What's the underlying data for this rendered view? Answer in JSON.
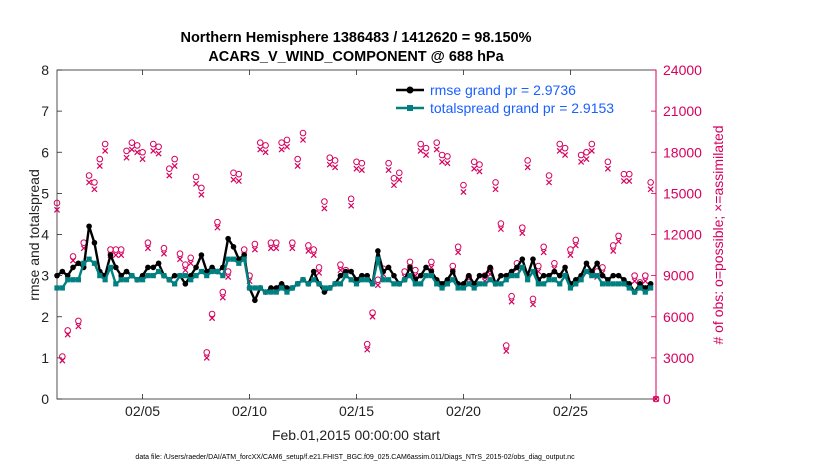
{
  "chart_data": {
    "type": "line",
    "title_line1": "Northern Hemisphere 1386483 / 1412620 = 98.150%",
    "title_line2": "ACARS_V_WIND_COMPONENT @ 688 hPa",
    "xlabel": "Feb.01,2015 00:00:00 start",
    "ylabel_left": "rmse and totalspread",
    "ylabel_right": "# of obs: o=possible; ×=assimilated",
    "footnote": "data file: /Users/raeder/DAI/ATM_forcXX/CAM6_setup/f.e21.FHIST_BGC.f09_025.CAM6assim.011/Diags_NTrS_2015-02/obs_diag_output.nc",
    "xlim": [
      1,
      29
    ],
    "ylim_left": [
      0,
      8
    ],
    "ylim_right": [
      0,
      24000
    ],
    "x_ticks": [
      5,
      10,
      15,
      20,
      25
    ],
    "x_tick_labels": [
      "02/05",
      "02/10",
      "02/15",
      "02/20",
      "02/25"
    ],
    "y_left_ticks": [
      "0",
      "1",
      "2",
      "3",
      "4",
      "5",
      "6",
      "7",
      "8"
    ],
    "y_right_ticks": [
      "0",
      "3000",
      "6000",
      "9000",
      "12000",
      "15000",
      "18000",
      "21000",
      "24000"
    ],
    "legend": [
      {
        "label": "rmse grand pr = 2.9736",
        "color": "#000000",
        "series": "rmse"
      },
      {
        "label": "totalspread grand pr = 2.9153",
        "color": "#008080",
        "series": "totalspread"
      }
    ],
    "colors": {
      "rmse": "#000000",
      "spread": "#008080",
      "obs": "#d6005e",
      "axis_right": "#d6005e",
      "legend_text": "#1a5fff"
    },
    "series": [
      {
        "name": "rmse",
        "x": [
          1.0,
          1.25,
          1.5,
          1.75,
          2.0,
          2.25,
          2.5,
          2.75,
          3.0,
          3.25,
          3.5,
          3.75,
          4.0,
          4.25,
          4.5,
          4.75,
          5.0,
          5.25,
          5.5,
          5.75,
          6.0,
          6.25,
          6.5,
          6.75,
          7.0,
          7.25,
          7.5,
          7.75,
          8.0,
          8.25,
          8.5,
          8.75,
          9.0,
          9.25,
          9.5,
          9.75,
          10.0,
          10.25,
          10.5,
          10.75,
          11.0,
          11.25,
          11.5,
          11.75,
          12.0,
          12.25,
          12.5,
          12.75,
          13.0,
          13.25,
          13.5,
          13.75,
          14.0,
          14.25,
          14.5,
          14.75,
          15.0,
          15.25,
          15.5,
          15.75,
          16.0,
          16.25,
          16.5,
          16.75,
          17.0,
          17.25,
          17.5,
          17.75,
          18.0,
          18.25,
          18.5,
          18.75,
          19.0,
          19.25,
          19.5,
          19.75,
          20.0,
          20.25,
          20.5,
          20.75,
          21.0,
          21.25,
          21.5,
          21.75,
          22.0,
          22.25,
          22.5,
          22.75,
          23.0,
          23.25,
          23.5,
          23.75,
          24.0,
          24.25,
          24.5,
          24.75,
          25.0,
          25.25,
          25.5,
          25.75,
          26.0,
          26.25,
          26.5,
          26.75,
          27.0,
          27.25,
          27.5,
          27.75,
          28.0,
          28.25,
          28.5,
          28.75
        ],
        "values": [
          3.0,
          3.1,
          3.0,
          3.2,
          3.3,
          3.2,
          4.2,
          3.8,
          3.1,
          3.0,
          3.5,
          3.2,
          3.0,
          3.1,
          3.0,
          2.9,
          3.0,
          3.2,
          3.2,
          3.3,
          3.0,
          2.9,
          3.0,
          3.0,
          2.8,
          3.0,
          3.2,
          3.5,
          3.1,
          3.2,
          3.1,
          3.2,
          3.9,
          3.7,
          3.4,
          3.5,
          2.7,
          2.4,
          2.7,
          2.6,
          2.7,
          2.7,
          2.8,
          2.7,
          2.7,
          2.8,
          2.9,
          2.8,
          3.1,
          2.8,
          2.6,
          2.7,
          2.8,
          3.0,
          3.1,
          3.1,
          2.9,
          3.0,
          3.0,
          2.8,
          3.6,
          3.1,
          3.2,
          3.0,
          2.8,
          2.9,
          3.2,
          2.9,
          3.0,
          3.2,
          3.1,
          2.9,
          2.8,
          2.9,
          3.1,
          2.8,
          2.8,
          3.0,
          2.8,
          3.0,
          3.0,
          3.2,
          2.8,
          3.0,
          3.0,
          3.1,
          3.2,
          3.4,
          3.0,
          3.4,
          2.9,
          3.0,
          3.0,
          3.1,
          3.0,
          3.2,
          2.8,
          2.9,
          3.0,
          3.3,
          3.1,
          3.3,
          3.0,
          2.9,
          3.0,
          3.0,
          2.9,
          2.8,
          2.6,
          2.8,
          2.7,
          2.8
        ]
      },
      {
        "name": "totalspread",
        "x": [
          1.0,
          1.25,
          1.5,
          1.75,
          2.0,
          2.25,
          2.5,
          2.75,
          3.0,
          3.25,
          3.5,
          3.75,
          4.0,
          4.25,
          4.5,
          4.75,
          5.0,
          5.25,
          5.5,
          5.75,
          6.0,
          6.25,
          6.5,
          6.75,
          7.0,
          7.25,
          7.5,
          7.75,
          8.0,
          8.25,
          8.5,
          8.75,
          9.0,
          9.25,
          9.5,
          9.75,
          10.0,
          10.25,
          10.5,
          10.75,
          11.0,
          11.25,
          11.5,
          11.75,
          12.0,
          12.25,
          12.5,
          12.75,
          13.0,
          13.25,
          13.5,
          13.75,
          14.0,
          14.25,
          14.5,
          14.75,
          15.0,
          15.25,
          15.5,
          15.75,
          16.0,
          16.25,
          16.5,
          16.75,
          17.0,
          17.25,
          17.5,
          17.75,
          18.0,
          18.25,
          18.5,
          18.75,
          19.0,
          19.25,
          19.5,
          19.75,
          20.0,
          20.25,
          20.5,
          20.75,
          21.0,
          21.25,
          21.5,
          21.75,
          22.0,
          22.25,
          22.5,
          22.75,
          23.0,
          23.25,
          23.5,
          23.75,
          24.0,
          24.25,
          24.5,
          24.75,
          25.0,
          25.25,
          25.5,
          25.75,
          26.0,
          26.25,
          26.5,
          26.75,
          27.0,
          27.25,
          27.5,
          27.75,
          28.0,
          28.25,
          28.5,
          28.75
        ],
        "values": [
          2.7,
          2.7,
          2.9,
          2.9,
          2.9,
          3.3,
          3.4,
          3.3,
          3.0,
          2.9,
          3.2,
          2.8,
          2.9,
          2.9,
          3.0,
          2.9,
          2.9,
          3.0,
          3.0,
          3.1,
          3.0,
          2.9,
          2.8,
          3.0,
          3.0,
          2.9,
          3.0,
          3.1,
          3.0,
          3.1,
          3.1,
          3.0,
          3.4,
          3.4,
          3.3,
          3.4,
          2.7,
          2.7,
          2.7,
          2.6,
          2.6,
          2.6,
          2.7,
          2.6,
          2.7,
          2.8,
          2.9,
          2.8,
          2.9,
          2.8,
          2.7,
          2.7,
          2.8,
          2.8,
          3.0,
          2.9,
          2.8,
          2.9,
          2.9,
          2.8,
          3.4,
          2.9,
          2.9,
          2.8,
          2.8,
          2.9,
          3.0,
          2.8,
          2.8,
          3.0,
          3.0,
          2.8,
          2.7,
          2.8,
          2.9,
          2.7,
          2.7,
          2.8,
          2.7,
          2.8,
          2.8,
          2.9,
          2.8,
          2.8,
          2.9,
          3.0,
          3.0,
          3.2,
          2.9,
          3.1,
          2.8,
          2.8,
          2.9,
          2.9,
          2.8,
          3.0,
          2.7,
          2.8,
          2.9,
          3.1,
          3.0,
          3.0,
          2.8,
          2.8,
          2.8,
          2.8,
          2.8,
          2.7,
          2.6,
          2.7,
          2.6,
          2.7
        ]
      },
      {
        "name": "obs_possible",
        "x": [
          1.0,
          1.25,
          1.5,
          1.75,
          2.0,
          2.25,
          2.5,
          2.75,
          3.0,
          3.25,
          3.5,
          3.75,
          4.0,
          4.25,
          4.5,
          4.75,
          5.0,
          5.25,
          5.5,
          5.75,
          6.0,
          6.25,
          6.5,
          6.75,
          7.0,
          7.25,
          7.5,
          7.75,
          8.0,
          8.25,
          8.5,
          8.75,
          9.0,
          9.25,
          9.5,
          9.75,
          10.0,
          10.25,
          10.5,
          10.75,
          11.0,
          11.25,
          11.5,
          11.75,
          12.0,
          12.25,
          12.5,
          12.75,
          13.0,
          13.25,
          13.5,
          13.75,
          14.0,
          14.25,
          14.5,
          14.75,
          15.0,
          15.25,
          15.5,
          15.75,
          16.0,
          16.25,
          16.5,
          16.75,
          17.0,
          17.25,
          17.5,
          17.75,
          18.0,
          18.25,
          18.5,
          18.75,
          19.0,
          19.25,
          19.5,
          19.75,
          20.0,
          20.25,
          20.5,
          20.75,
          21.0,
          21.25,
          21.5,
          21.75,
          22.0,
          22.25,
          22.5,
          22.75,
          23.0,
          23.25,
          23.5,
          23.75,
          24.0,
          24.25,
          24.5,
          24.75,
          25.0,
          25.25,
          25.5,
          25.75,
          26.0,
          26.25,
          26.5,
          26.75,
          27.0,
          27.25,
          27.5,
          27.75,
          28.0,
          28.25,
          28.5,
          28.75,
          29.0
        ],
        "values": [
          14300,
          3100,
          5000,
          10400,
          5700,
          11400,
          16300,
          15800,
          17500,
          18600,
          10900,
          10900,
          10900,
          18100,
          18700,
          18500,
          18000,
          11400,
          18600,
          18400,
          11000,
          16800,
          17500,
          10600,
          9800,
          10300,
          16200,
          15400,
          3400,
          6200,
          12900,
          7800,
          9300,
          16500,
          16400,
          10900,
          9000,
          11300,
          18700,
          18500,
          11400,
          11400,
          18700,
          18900,
          11400,
          17500,
          19400,
          11200,
          10900,
          9600,
          14400,
          17600,
          17400,
          9800,
          9400,
          14600,
          17300,
          17200,
          4000,
          6300,
          8700,
          9500,
          17200,
          16100,
          16500,
          9300,
          10000,
          9400,
          18600,
          18300,
          10000,
          18700,
          17800,
          17700,
          9700,
          11100,
          15600,
          8900,
          17300,
          17100,
          9000,
          9500,
          15800,
          12800,
          3900,
          7500,
          9900,
          12500,
          17400,
          7300,
          9700,
          11100,
          16300,
          9900,
          18600,
          18300,
          10900,
          11600,
          17800,
          18000,
          18600,
          9300,
          9600,
          17300,
          11200,
          11900,
          16400,
          16400,
          9000,
          8500,
          9000,
          15800,
          0
        ]
      },
      {
        "name": "obs_assimilated",
        "x": [
          1.0,
          1.25,
          1.5,
          1.75,
          2.0,
          2.25,
          2.5,
          2.75,
          3.0,
          3.25,
          3.5,
          3.75,
          4.0,
          4.25,
          4.5,
          4.75,
          5.0,
          5.25,
          5.5,
          5.75,
          6.0,
          6.25,
          6.5,
          6.75,
          7.0,
          7.25,
          7.5,
          7.75,
          8.0,
          8.25,
          8.5,
          8.75,
          9.0,
          9.25,
          9.5,
          9.75,
          10.0,
          10.25,
          10.5,
          10.75,
          11.0,
          11.25,
          11.5,
          11.75,
          12.0,
          12.25,
          12.5,
          12.75,
          13.0,
          13.25,
          13.5,
          13.75,
          14.0,
          14.25,
          14.5,
          14.75,
          15.0,
          15.25,
          15.5,
          15.75,
          16.0,
          16.25,
          16.5,
          16.75,
          17.0,
          17.25,
          17.5,
          17.75,
          18.0,
          18.25,
          18.5,
          18.75,
          19.0,
          19.25,
          19.5,
          19.75,
          20.0,
          20.25,
          20.5,
          20.75,
          21.0,
          21.25,
          21.5,
          21.75,
          22.0,
          22.25,
          22.5,
          22.75,
          23.0,
          23.25,
          23.5,
          23.75,
          24.0,
          24.25,
          24.5,
          24.75,
          25.0,
          25.25,
          25.5,
          25.75,
          26.0,
          26.25,
          26.5,
          26.75,
          27.0,
          27.25,
          27.5,
          27.75,
          28.0,
          28.25,
          28.5,
          28.75,
          29.0
        ],
        "values": [
          13800,
          2800,
          4700,
          10100,
          5300,
          11000,
          15800,
          15300,
          17000,
          18100,
          10500,
          10500,
          10500,
          17600,
          18200,
          18000,
          17500,
          11000,
          18100,
          17900,
          10600,
          16300,
          17000,
          10200,
          9400,
          9900,
          15700,
          14900,
          3000,
          5900,
          12500,
          7400,
          8900,
          16000,
          15900,
          10500,
          8600,
          10900,
          18200,
          18000,
          11000,
          11000,
          18200,
          18400,
          11000,
          17000,
          18900,
          10800,
          10500,
          9200,
          13900,
          17100,
          16900,
          9400,
          9000,
          14100,
          16800,
          16700,
          3600,
          6000,
          8300,
          9100,
          16700,
          15600,
          16000,
          8900,
          9600,
          9000,
          18100,
          17800,
          9600,
          18200,
          17300,
          17200,
          9300,
          10700,
          15100,
          8500,
          16800,
          16600,
          8600,
          9100,
          15300,
          12400,
          3500,
          7100,
          9500,
          12100,
          16900,
          6900,
          9300,
          10700,
          15800,
          9500,
          18100,
          17800,
          10500,
          11200,
          17300,
          17500,
          18100,
          8900,
          9200,
          16800,
          10800,
          11500,
          15900,
          15900,
          8600,
          8100,
          8600,
          15300,
          0
        ]
      }
    ]
  }
}
